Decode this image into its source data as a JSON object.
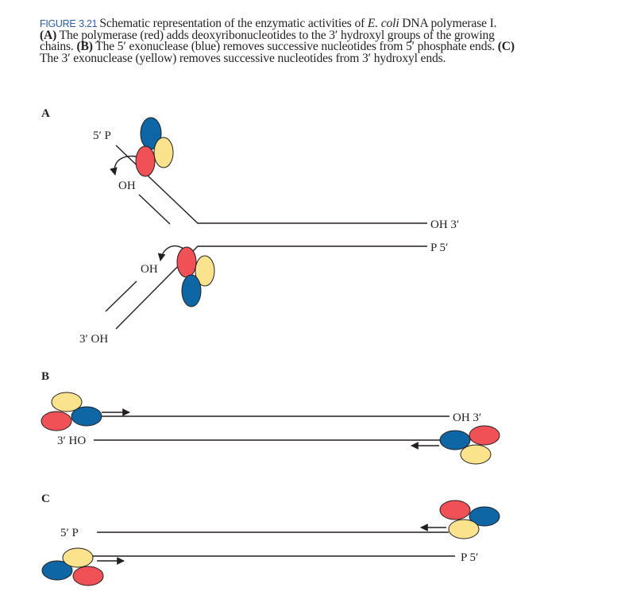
{
  "caption": {
    "figure_label": "FIGURE",
    "figure_number": "3.21",
    "text_1": "Schematic representation of the enzymatic activities of ",
    "species": "E. coli",
    "text_2": " DNA polymerase I. ",
    "a_tag": "(A)",
    "a_text": " The polymerase (red) adds deoxyribonucleotides to the 3′ hydroxyl groups of the growing chains. ",
    "b_tag": "(B)",
    "b_text": " The 5′ exonuclease (blue) removes successive nucleotides from 5′ phosphate ends. ",
    "c_tag": "(C)",
    "c_text": " The 3′ exonuclease (yellow) removes successive nucleotides from 3′ hydroxyl ends."
  },
  "colors": {
    "polymerase": "#ef5156",
    "exo5": "#0f66a4",
    "exo3": "#fbe38e",
    "ink": "#231f20",
    "caption_label": "#2a5ea8"
  },
  "panels": {
    "a": {
      "label": "A",
      "upper_end_top": "5′ P",
      "upper_oh": "OH",
      "right_top": "OH 3′",
      "right_bottom": "P 5′",
      "lower_oh": "OH",
      "lower_end": "3′ OH"
    },
    "b": {
      "label": "B",
      "right_top": "OH 3′",
      "left_bottom": "3′ HO"
    },
    "c": {
      "label": "C",
      "left_top": "5′ P",
      "right_bottom": "P 5′"
    }
  }
}
